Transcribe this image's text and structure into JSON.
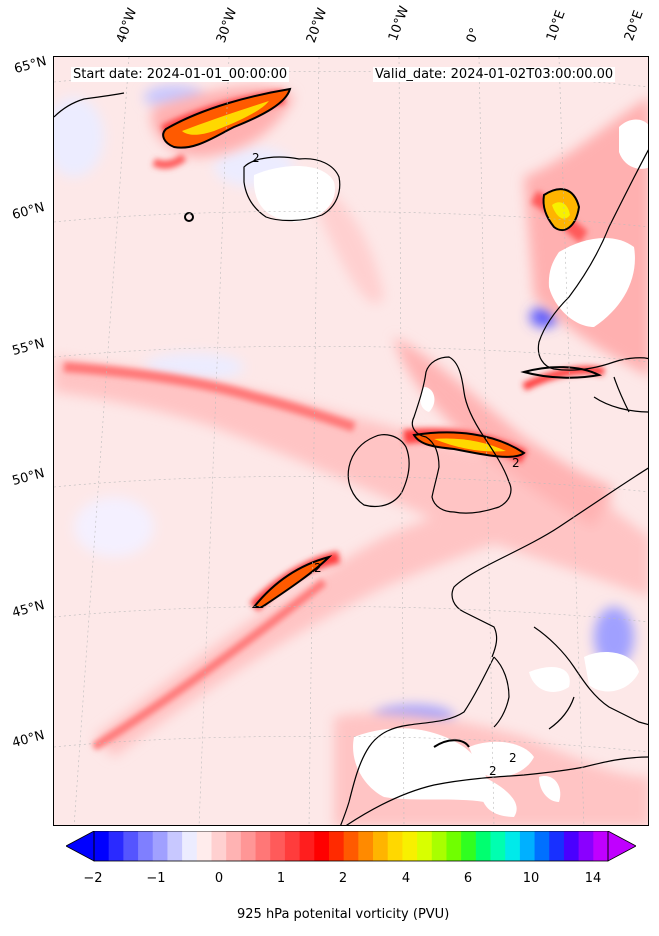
{
  "header": {
    "start_label": "Start date: 2024-01-01_00:00:00",
    "valid_label": "Valid_date: 2024-01-02T03:00:00.00"
  },
  "longitude_labels": [
    "40°W",
    "30°W",
    "20°W",
    "10°W",
    "0°",
    "10°E",
    "20°E"
  ],
  "latitude_labels": [
    "65°N",
    "60°N",
    "55°N",
    "50°N",
    "45°N",
    "40°N"
  ],
  "contour_labels": [
    "2",
    "2",
    "2",
    "2",
    "2"
  ],
  "colorbar": {
    "title": "925 hPa potenital vorticity (PVU)",
    "tick_labels": [
      "−2",
      "−1",
      "0",
      "1",
      "2",
      "4",
      "6",
      "10",
      "14"
    ],
    "colors": [
      "#0000ff",
      "#2a2aff",
      "#5555ff",
      "#7f7fff",
      "#a0a0ff",
      "#c8c8ff",
      "#ececff",
      "#ffecec",
      "#ffd0d0",
      "#ffb3b3",
      "#ff9696",
      "#ff7777",
      "#ff5a5a",
      "#ff3c3c",
      "#ff1e1e",
      "#ff0000",
      "#ff2a00",
      "#ff5a00",
      "#ff8a00",
      "#ffb400",
      "#ffd800",
      "#f8f000",
      "#d8ff00",
      "#a8ff00",
      "#70ff00",
      "#30ff20",
      "#00ff70",
      "#00ffb0",
      "#00eaea",
      "#00b0ff",
      "#0070ff",
      "#1830ff",
      "#4a00ff",
      "#8a00ff",
      "#c000ff"
    ]
  }
}
